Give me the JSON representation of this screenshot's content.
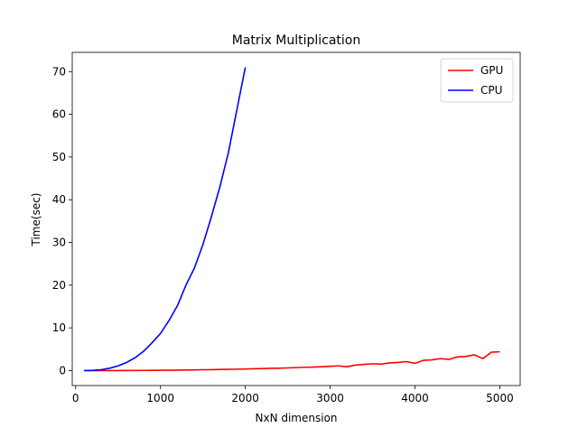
{
  "chart_data": {
    "type": "line",
    "title": "Matrix Multiplication",
    "xlabel": "NxN dimension",
    "ylabel": "Time(sec)",
    "xlim": [
      -40,
      5240
    ],
    "ylim": [
      -3.5,
      74.5
    ],
    "xticks": [
      0,
      1000,
      2000,
      3000,
      4000,
      5000
    ],
    "yticks": [
      0,
      10,
      20,
      30,
      40,
      50,
      60,
      70
    ],
    "grid": false,
    "legend": "top-right",
    "series": [
      {
        "name": "GPU",
        "color": "#ff0000",
        "x": [
          100,
          200,
          300,
          400,
          500,
          600,
          700,
          800,
          900,
          1000,
          1100,
          1200,
          1300,
          1400,
          1500,
          1600,
          1700,
          1800,
          1900,
          2000,
          2100,
          2200,
          2300,
          2400,
          2500,
          2600,
          2700,
          2800,
          2900,
          3000,
          3100,
          3200,
          3300,
          3400,
          3500,
          3600,
          3700,
          3800,
          3900,
          4000,
          4100,
          4200,
          4300,
          4400,
          4500,
          4600,
          4700,
          4800,
          4900,
          5000
        ],
        "y": [
          0.0,
          0.0,
          0.01,
          0.01,
          0.01,
          0.02,
          0.03,
          0.04,
          0.05,
          0.07,
          0.09,
          0.11,
          0.13,
          0.16,
          0.2,
          0.22,
          0.27,
          0.3,
          0.33,
          0.37,
          0.42,
          0.48,
          0.52,
          0.55,
          0.62,
          0.7,
          0.78,
          0.82,
          0.9,
          1.0,
          1.1,
          0.9,
          1.3,
          1.45,
          1.6,
          1.5,
          1.8,
          1.9,
          2.1,
          1.7,
          2.4,
          2.5,
          2.8,
          2.6,
          3.2,
          3.3,
          3.7,
          2.8,
          4.3,
          4.4
        ]
      },
      {
        "name": "CPU",
        "color": "#0000ff",
        "x": [
          100,
          200,
          300,
          400,
          500,
          600,
          700,
          800,
          900,
          1000,
          1100,
          1200,
          1300,
          1400,
          1500,
          1600,
          1700,
          1800,
          1900,
          2000
        ],
        "y": [
          0.0,
          0.05,
          0.2,
          0.55,
          1.1,
          1.9,
          3.0,
          4.5,
          6.5,
          8.7,
          11.7,
          15.2,
          20.0,
          24.0,
          29.5,
          36.0,
          43.0,
          51.0,
          61.0,
          71.0
        ]
      }
    ]
  }
}
